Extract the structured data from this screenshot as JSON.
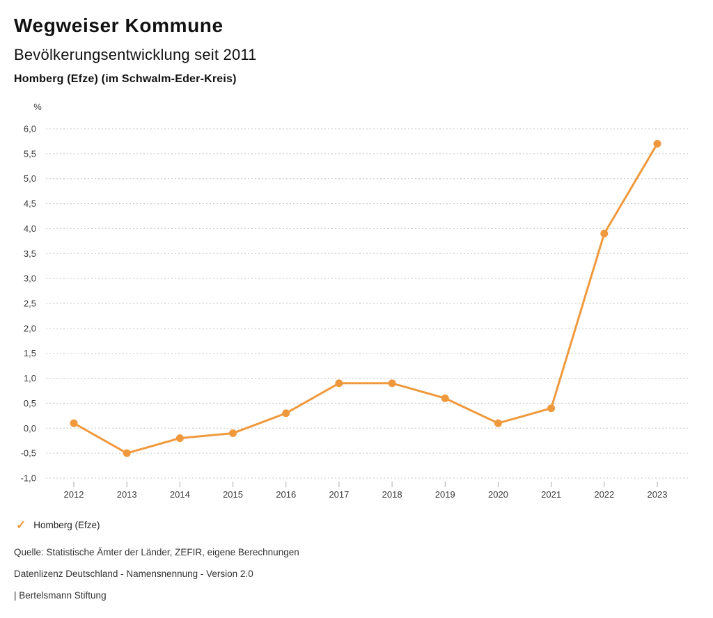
{
  "header": {
    "title": "Wegweiser Kommune",
    "subtitle": "Bevölkerungsentwicklung seit 2011",
    "region": "Homberg (Efze) (im Schwalm-Eder-Kreis)"
  },
  "chart_data": {
    "type": "line",
    "title": "Bevölkerungsentwicklung seit 2011",
    "xlabel": "",
    "ylabel": "%",
    "categories": [
      "2012",
      "2013",
      "2014",
      "2015",
      "2016",
      "2017",
      "2018",
      "2019",
      "2020",
      "2021",
      "2022",
      "2023"
    ],
    "series": [
      {
        "name": "Homberg (Efze)",
        "values": [
          0.1,
          -0.5,
          -0.2,
          -0.1,
          0.3,
          0.9,
          0.9,
          0.6,
          0.1,
          0.4,
          3.9,
          5.7
        ],
        "color": "#F0993C"
      }
    ],
    "ylim": [
      -1.0,
      6.0
    ],
    "ytick_step": 0.5,
    "yticks": [
      6.0,
      5.5,
      5.0,
      4.5,
      4.0,
      3.5,
      3.0,
      2.5,
      2.0,
      1.5,
      1.0,
      0.5,
      0.0,
      -0.5,
      -1.0
    ],
    "ytick_labels": [
      "6,0",
      "5,5",
      "5,0",
      "4,5",
      "4,0",
      "3,5",
      "3,0",
      "2,5",
      "2,0",
      "1,5",
      "1,0",
      "0,5",
      "0,0",
      "-0,5",
      "-1,0"
    ],
    "grid": "horizontal-dotted",
    "legend_position": "bottom-left"
  },
  "legend": {
    "check_icon": "✓",
    "label": "Homberg (Efze)"
  },
  "footer": {
    "source": "Quelle: Statistische Ämter der Länder, ZEFIR, eigene Berechnungen",
    "license": "Datenlizenz Deutschland - Namensnennung - Version 2.0",
    "attribution": "| Bertelsmann Stiftung"
  },
  "colors": {
    "line": "#F0993C",
    "grid": "#C6C6C6",
    "tick": "#ABABAB",
    "axis_text": "#3A3A3A",
    "title_text": "#111111"
  }
}
